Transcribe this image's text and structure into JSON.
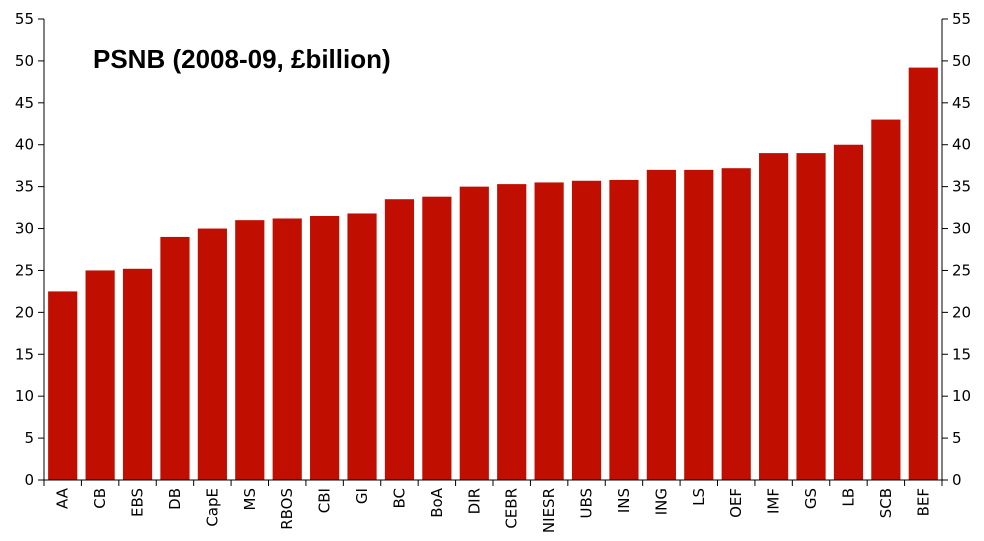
{
  "chart_data": {
    "type": "bar",
    "title": "PSNB (2008-09, £billion)",
    "xlabel": "",
    "ylabel": "",
    "ylim": [
      0,
      55
    ],
    "yticks": [
      0,
      5,
      10,
      15,
      20,
      25,
      30,
      35,
      40,
      45,
      50,
      55
    ],
    "secondary_axis": true,
    "grid": false,
    "bar_color": "#c00f00",
    "categories": [
      "AA",
      "CB",
      "EBS",
      "DB",
      "CapE",
      "MS",
      "RBOS",
      "CBI",
      "GI",
      "BC",
      "BoA",
      "DIR",
      "CEBR",
      "NIESR",
      "UBS",
      "INS",
      "ING",
      "LS",
      "OEF",
      "IMF",
      "GS",
      "LB",
      "SCB",
      "BEF"
    ],
    "values": [
      22.5,
      25,
      25.2,
      29,
      30,
      31,
      31.2,
      31.5,
      31.8,
      33.5,
      33.8,
      35,
      35.3,
      35.5,
      35.7,
      35.8,
      37,
      37,
      37.2,
      39,
      39,
      40,
      43,
      49.2
    ]
  }
}
